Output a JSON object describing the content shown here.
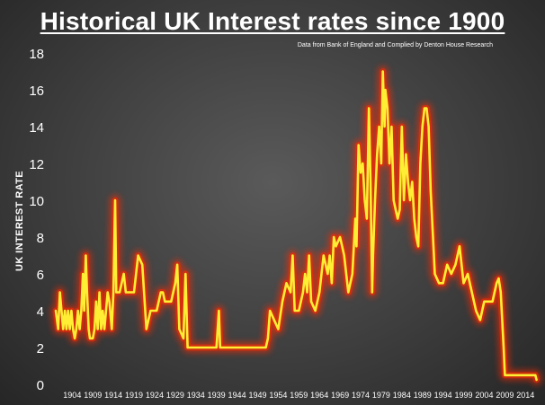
{
  "chart_data": {
    "type": "line",
    "title": "Historical UK Interest rates since 1900",
    "subtitle": "Data from Bank of England and Complied by Denton House Research",
    "xlabel": "",
    "ylabel": "UK INTEREST RATE",
    "ylim": [
      0,
      18
    ],
    "xlim": [
      1900,
      2017
    ],
    "yticks": [
      0,
      2,
      4,
      6,
      8,
      10,
      12,
      14,
      16,
      18
    ],
    "xticks": [
      1904,
      1909,
      1914,
      1919,
      1924,
      1929,
      1934,
      1939,
      1944,
      1949,
      1954,
      1959,
      1964,
      1969,
      1974,
      1979,
      1984,
      1989,
      1994,
      1999,
      2004,
      2009,
      2014
    ],
    "grid": false,
    "legend": "none",
    "line_color": "#ffee33",
    "glow_color": "#ff2a00",
    "series": [
      {
        "points": [
          [
            1900,
            4
          ],
          [
            1900.6,
            3
          ],
          [
            1901,
            5
          ],
          [
            1901.4,
            4
          ],
          [
            1901.8,
            3
          ],
          [
            1902.2,
            4
          ],
          [
            1902.6,
            3
          ],
          [
            1903,
            4
          ],
          [
            1903.4,
            3
          ],
          [
            1903.8,
            4
          ],
          [
            1904.2,
            3
          ],
          [
            1904.6,
            2.5
          ],
          [
            1905,
            3
          ],
          [
            1905.4,
            4
          ],
          [
            1905.8,
            3
          ],
          [
            1906.2,
            4
          ],
          [
            1906.6,
            6
          ],
          [
            1906.9,
            4
          ],
          [
            1907.3,
            7
          ],
          [
            1907.6,
            5
          ],
          [
            1908,
            3
          ],
          [
            1908.3,
            2.5
          ],
          [
            1909,
            2.5
          ],
          [
            1909.4,
            3
          ],
          [
            1909.8,
            4.5
          ],
          [
            1910.2,
            3
          ],
          [
            1910.6,
            5
          ],
          [
            1911,
            3
          ],
          [
            1911.4,
            4
          ],
          [
            1911.8,
            3
          ],
          [
            1912.2,
            4
          ],
          [
            1912.6,
            5
          ],
          [
            1913,
            4.5
          ],
          [
            1913.6,
            3
          ],
          [
            1914,
            5
          ],
          [
            1914.4,
            10
          ],
          [
            1914.7,
            5
          ],
          [
            1915.5,
            5
          ],
          [
            1916.5,
            6
          ],
          [
            1917,
            5
          ],
          [
            1919,
            5
          ],
          [
            1920,
            7
          ],
          [
            1921,
            6.5
          ],
          [
            1922,
            3
          ],
          [
            1923,
            4
          ],
          [
            1924.5,
            4
          ],
          [
            1925.5,
            5
          ],
          [
            1926,
            5
          ],
          [
            1926.5,
            4.5
          ],
          [
            1928,
            4.5
          ],
          [
            1929,
            5.5
          ],
          [
            1929.5,
            6.5
          ],
          [
            1930,
            3
          ],
          [
            1931,
            2.5
          ],
          [
            1931.5,
            6
          ],
          [
            1932,
            2
          ],
          [
            1939,
            2
          ],
          [
            1939.6,
            4
          ],
          [
            1939.9,
            2
          ],
          [
            1951,
            2
          ],
          [
            1951.5,
            2.5
          ],
          [
            1952,
            4
          ],
          [
            1953,
            3.5
          ],
          [
            1954,
            3
          ],
          [
            1955,
            4.5
          ],
          [
            1956,
            5.5
          ],
          [
            1957,
            5
          ],
          [
            1957.5,
            7
          ],
          [
            1958,
            4
          ],
          [
            1959,
            4
          ],
          [
            1960,
            5
          ],
          [
            1960.5,
            6
          ],
          [
            1961,
            5
          ],
          [
            1961.5,
            7
          ],
          [
            1962,
            4.5
          ],
          [
            1963,
            4
          ],
          [
            1964,
            5
          ],
          [
            1965,
            7
          ],
          [
            1966,
            6
          ],
          [
            1966.5,
            7
          ],
          [
            1967,
            5.5
          ],
          [
            1967.5,
            8
          ],
          [
            1968,
            7.5
          ],
          [
            1969,
            8
          ],
          [
            1970,
            7
          ],
          [
            1971,
            5
          ],
          [
            1972,
            6
          ],
          [
            1972.7,
            9
          ],
          [
            1973,
            7.5
          ],
          [
            1973.5,
            13
          ],
          [
            1974,
            11.5
          ],
          [
            1974.5,
            12
          ],
          [
            1975,
            10
          ],
          [
            1975.5,
            9
          ],
          [
            1976,
            15
          ],
          [
            1976.4,
            11
          ],
          [
            1976.8,
            5
          ],
          [
            1977,
            7
          ],
          [
            1977.5,
            10
          ],
          [
            1978,
            12.5
          ],
          [
            1978.5,
            14
          ],
          [
            1979,
            12
          ],
          [
            1979.4,
            17
          ],
          [
            1979.8,
            14
          ],
          [
            1980,
            16
          ],
          [
            1980.5,
            15
          ],
          [
            1981,
            12
          ],
          [
            1981.5,
            14
          ],
          [
            1982,
            10
          ],
          [
            1982.5,
            9.5
          ],
          [
            1983,
            9
          ],
          [
            1983.5,
            9.5
          ],
          [
            1984,
            14
          ],
          [
            1984.5,
            10
          ],
          [
            1985,
            12.5
          ],
          [
            1985.5,
            11
          ],
          [
            1986,
            10
          ],
          [
            1986.5,
            11
          ],
          [
            1987,
            9
          ],
          [
            1987.5,
            8
          ],
          [
            1988,
            7.5
          ],
          [
            1988.5,
            12
          ],
          [
            1989,
            14
          ],
          [
            1989.5,
            15
          ],
          [
            1990,
            15
          ],
          [
            1990.5,
            14
          ],
          [
            1991,
            10.5
          ],
          [
            1992,
            6
          ],
          [
            1993,
            5.5
          ],
          [
            1994,
            5.5
          ],
          [
            1995,
            6.5
          ],
          [
            1996,
            6
          ],
          [
            1997,
            6.5
          ],
          [
            1998,
            7.5
          ],
          [
            1999,
            5.5
          ],
          [
            2000,
            6
          ],
          [
            2001,
            5
          ],
          [
            2002,
            4
          ],
          [
            2003,
            3.5
          ],
          [
            2004,
            4.5
          ],
          [
            2005,
            4.5
          ],
          [
            2006,
            4.5
          ],
          [
            2007,
            5.5
          ],
          [
            2007.5,
            5.75
          ],
          [
            2008,
            5
          ],
          [
            2008.7,
            2
          ],
          [
            2009,
            0.5
          ],
          [
            2016.4,
            0.5
          ],
          [
            2016.7,
            0.25
          ]
        ]
      }
    ]
  }
}
